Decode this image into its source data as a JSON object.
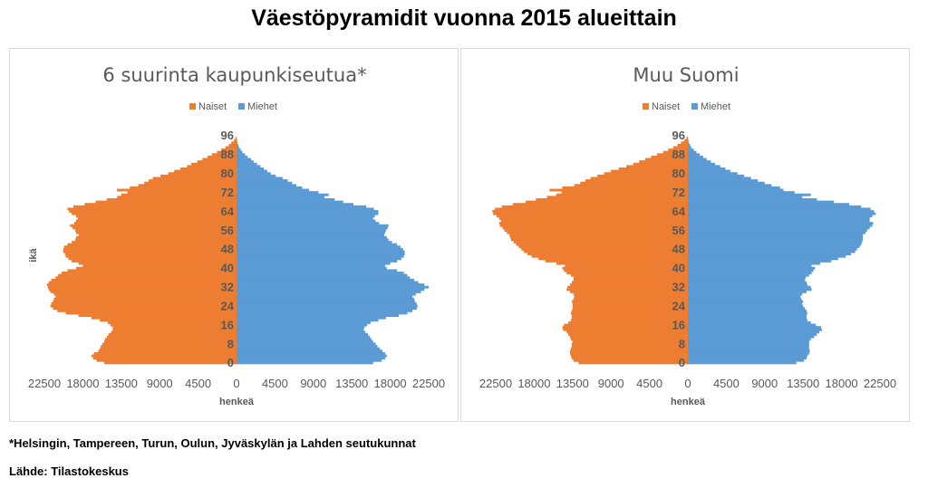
{
  "title": "Väestöpyramidit vuonna 2015 alueittain",
  "footnote": "*Helsingin, Tampereen, Turun, Oulun, Jyväskylän ja Lahden seutukunnat",
  "source": "Lähde: Tilastokeskus",
  "colors": {
    "naiset": "#ed7d31",
    "miehet": "#5b9bd5"
  },
  "chart_data": [
    {
      "type": "bar",
      "orientation": "horizontal-population-pyramid",
      "title": "6 suurinta kaupunkiseutua*",
      "xlabel": "henkeä",
      "ylabel": "ikä",
      "xlim": [
        -22500,
        22500
      ],
      "x_ticks": [
        "22500",
        "18000",
        "13500",
        "9000",
        "4500",
        "0",
        "4500",
        "9000",
        "13500",
        "18000",
        "22500"
      ],
      "y_ticks": [
        "96",
        "88",
        "80",
        "72",
        "64",
        "56",
        "48",
        "40",
        "32",
        "24",
        "16",
        "8",
        "0"
      ],
      "legend": [
        "Naiset",
        "Miehet"
      ],
      "legend_position": "top",
      "series": [
        {
          "name": "Naiset",
          "values": [
            15500,
            16400,
            16800,
            17000,
            16700,
            16200,
            16000,
            15900,
            15700,
            15500,
            15400,
            15200,
            15000,
            14700,
            14500,
            14500,
            14800,
            15100,
            16000,
            17000,
            18500,
            20000,
            21000,
            21500,
            21800,
            21700,
            21500,
            21400,
            21200,
            21400,
            21800,
            22000,
            22100,
            22200,
            22000,
            21700,
            21200,
            20900,
            20500,
            19800,
            18800,
            18000,
            18500,
            19300,
            19700,
            20000,
            20100,
            20300,
            20300,
            20200,
            19800,
            19300,
            18900,
            18800,
            18500,
            18800,
            18900,
            19200,
            19500,
            19000,
            18800,
            18600,
            18800,
            19300,
            19600,
            19800,
            19100,
            17800,
            16500,
            15200,
            14000,
            13500,
            12800,
            14000,
            12500,
            11500,
            10800,
            10300,
            9800,
            8900,
            8000,
            7300,
            6600,
            5800,
            5300,
            4600,
            4000,
            3400,
            2900,
            2300,
            1800,
            1300,
            900,
            600,
            300,
            100
          ]
        },
        {
          "name": "Miehet",
          "values": [
            16000,
            17000,
            17400,
            17600,
            17400,
            17100,
            16800,
            16500,
            16300,
            16000,
            15800,
            15600,
            15400,
            15100,
            14900,
            15000,
            15300,
            15700,
            16600,
            17500,
            19000,
            20000,
            20600,
            21100,
            21200,
            21100,
            20900,
            20800,
            20600,
            21000,
            21600,
            22000,
            22500,
            22000,
            21300,
            20800,
            20300,
            20000,
            19600,
            18800,
            17600,
            17400,
            18000,
            18800,
            19300,
            19600,
            19700,
            19700,
            19500,
            19200,
            18800,
            18200,
            17800,
            17600,
            17300,
            17400,
            17500,
            17700,
            17800,
            16700,
            16300,
            16000,
            16200,
            16600,
            16600,
            16100,
            15200,
            13700,
            12500,
            11500,
            10300,
            10800,
            9600,
            8500,
            7700,
            7000,
            6500,
            6000,
            5400,
            4600,
            4000,
            3600,
            3200,
            2800,
            2400,
            2000,
            1700,
            1300,
            1000,
            700,
            500,
            300,
            200,
            100,
            50,
            20
          ]
        }
      ]
    },
    {
      "type": "bar",
      "orientation": "horizontal-population-pyramid",
      "title": "Muu Suomi",
      "xlabel": "henkeä",
      "ylabel": "",
      "xlim": [
        -22500,
        22500
      ],
      "x_ticks": [
        "22500",
        "18000",
        "13500",
        "9000",
        "4500",
        "0",
        "4500",
        "9000",
        "13500",
        "18000",
        "22500"
      ],
      "y_ticks": [
        "96",
        "88",
        "80",
        "72",
        "64",
        "56",
        "48",
        "40",
        "32",
        "24",
        "16",
        "8",
        "0"
      ],
      "legend": [
        "Naiset",
        "Miehet"
      ],
      "legend_position": "top",
      "series": [
        {
          "name": "Naiset",
          "values": [
            12800,
            13400,
            13600,
            13700,
            13800,
            13800,
            13700,
            13600,
            13600,
            13500,
            13700,
            13800,
            14000,
            14200,
            14600,
            14700,
            14500,
            14000,
            13700,
            13600,
            13600,
            13700,
            13600,
            13500,
            13500,
            13500,
            13600,
            13400,
            13300,
            13400,
            13800,
            14200,
            14100,
            13800,
            13600,
            13400,
            13400,
            13700,
            14200,
            14500,
            14700,
            14400,
            15400,
            16700,
            17500,
            18300,
            18800,
            19200,
            19500,
            19800,
            20100,
            20400,
            20700,
            20800,
            20900,
            21200,
            21500,
            21700,
            22000,
            22100,
            21900,
            22100,
            22400,
            22800,
            22900,
            22600,
            21800,
            20500,
            19000,
            17800,
            16500,
            15400,
            14800,
            16200,
            14700,
            13300,
            12600,
            12000,
            11400,
            10600,
            9800,
            9000,
            8100,
            7200,
            6400,
            5700,
            5000,
            4300,
            3600,
            2900,
            2300,
            1700,
            1200,
            800,
            400,
            150
          ]
        },
        {
          "name": "Miehet",
          "values": [
            12700,
            13600,
            13900,
            14000,
            14200,
            14300,
            14200,
            14200,
            14200,
            14200,
            14400,
            14800,
            15100,
            15400,
            15700,
            15600,
            15000,
            14400,
            14000,
            13900,
            13900,
            14000,
            13900,
            13700,
            13500,
            13400,
            13500,
            13300,
            13200,
            13400,
            13900,
            14500,
            14400,
            14000,
            13900,
            13700,
            13800,
            14200,
            14500,
            14700,
            14900,
            14500,
            15500,
            16800,
            17600,
            18500,
            19100,
            19600,
            19800,
            20100,
            20300,
            20400,
            20500,
            20500,
            20500,
            20800,
            21000,
            21300,
            21600,
            21700,
            21300,
            21300,
            21600,
            22000,
            21800,
            21400,
            20300,
            18900,
            17100,
            15100,
            13400,
            14400,
            12500,
            11200,
            10800,
            9800,
            9000,
            8200,
            7400,
            6600,
            5800,
            5000,
            4400,
            3800,
            3200,
            2700,
            2200,
            1800,
            1400,
            1000,
            700,
            400,
            250,
            120,
            60,
            20
          ]
        }
      ]
    }
  ]
}
